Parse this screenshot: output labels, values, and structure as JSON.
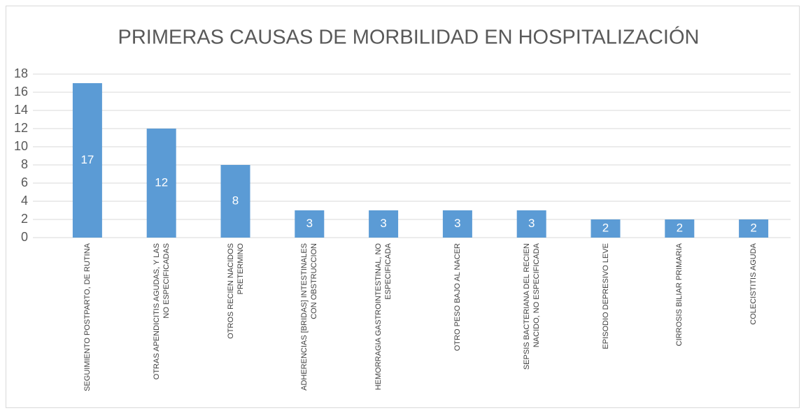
{
  "chart_data": {
    "type": "bar",
    "title": "PRIMERAS CAUSAS DE MORBILIDAD EN HOSPITALIZACIÓN",
    "categories": [
      "SEGUIMIENTO POSTPARTO, DE RUTINA",
      "OTRAS APENDICITIS AGUDAS, Y LAS NO ESPECIFICADAS",
      "OTROS RECIEN NACIDOS PRETERMINO",
      "ADHERENCIAS [BRIDAS] INTESTINALES CON OBSTRUCCION",
      "HEMORRAGIA GASTROINTESTINAL, NO ESPECIFICADA",
      "OTRO PESO BAJO AL NACER",
      "SEPSIS BACTERIANA DEL RECIEN NACIDO, NO ESPECIFICADA",
      "EPISODIO DEPRESIVO LEVE",
      "CIRROSIS BILIAR PRIMARIA",
      "COLECISTITIS AGUDA"
    ],
    "values": [
      17,
      12,
      8,
      3,
      3,
      3,
      3,
      2,
      2,
      2
    ],
    "color": "#5b9bd5",
    "ylim": [
      0,
      18
    ],
    "yticks": [
      0,
      2,
      4,
      6,
      8,
      10,
      12,
      14,
      16,
      18
    ],
    "grid": true
  }
}
